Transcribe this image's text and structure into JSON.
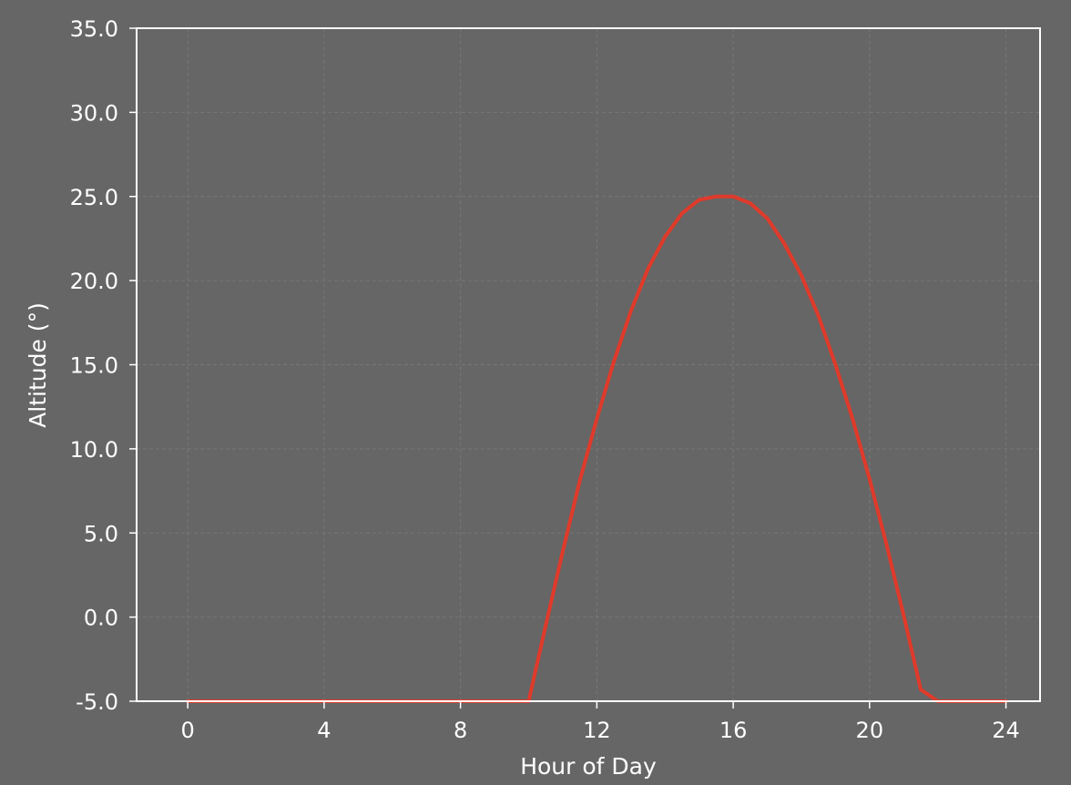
{
  "chart_data": {
    "type": "line",
    "title": "",
    "xlabel": "Hour of Day",
    "ylabel": "Altitude (°)",
    "xlim": [
      -1.5,
      25.0
    ],
    "ylim": [
      -5.0,
      35.0
    ],
    "xticks": [
      0,
      4,
      8,
      12,
      16,
      20,
      24
    ],
    "xtick_labels": [
      "0",
      "4",
      "8",
      "12",
      "16",
      "20",
      "24"
    ],
    "yticks": [
      -5.0,
      0.0,
      5.0,
      10.0,
      15.0,
      20.0,
      25.0,
      30.0,
      35.0
    ],
    "ytick_labels": [
      "-5.0",
      "0.0",
      "5.0",
      "10.0",
      "15.0",
      "20.0",
      "25.0",
      "30.0",
      "35.0"
    ],
    "grid": true,
    "legend": "none",
    "colors": {
      "background": "#666666",
      "axes": "#ffffff",
      "grid": "#777777",
      "line": "#e03a2a"
    },
    "series": [
      {
        "x": [
          0,
          1,
          2,
          3,
          4,
          5,
          6,
          7,
          8,
          9,
          10,
          10.5,
          11,
          11.5,
          12,
          12.5,
          13,
          13.5,
          14,
          14.5,
          15,
          15.5,
          16,
          16.5,
          17,
          17.5,
          18,
          18.5,
          19,
          19.5,
          20,
          20.5,
          21,
          21.5,
          22,
          22.5,
          23,
          24
        ],
        "y": [
          -5.0,
          -5.0,
          -5.0,
          -5.0,
          -5.0,
          -5.0,
          -5.0,
          -5.0,
          -5.0,
          -5.0,
          -5.0,
          -0.5,
          3.9,
          8.1,
          11.8,
          15.2,
          18.2,
          20.7,
          22.6,
          24.0,
          24.8,
          25.0,
          25.0,
          24.6,
          23.7,
          22.2,
          20.3,
          17.9,
          15.0,
          11.8,
          8.2,
          4.3,
          0.1,
          -4.3,
          -5.0,
          -5.0,
          -5.0,
          -5.0
        ]
      }
    ]
  }
}
